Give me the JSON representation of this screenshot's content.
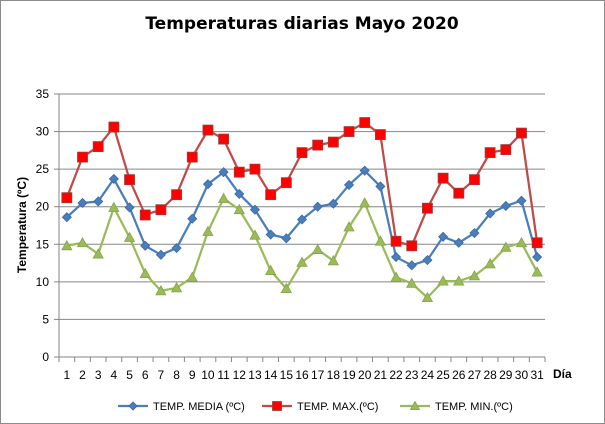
{
  "chart_data": {
    "type": "line",
    "title": "Temperaturas diarias Mayo 2020",
    "xlabel": "Día",
    "ylabel": "Temperatura (ºC)",
    "ylim": [
      0,
      35
    ],
    "yticks": [
      0,
      5,
      10,
      15,
      20,
      25,
      30,
      35
    ],
    "grid": "horizontal",
    "legend": "bottom",
    "categories": [
      "1",
      "2",
      "3",
      "4",
      "5",
      "6",
      "7",
      "8",
      "9",
      "10",
      "11",
      "12",
      "13",
      "14",
      "15",
      "16",
      "17",
      "18",
      "19",
      "20",
      "21",
      "22",
      "23",
      "24",
      "25",
      "26",
      "27",
      "28",
      "29",
      "30",
      "31"
    ],
    "series": [
      {
        "name": "TEMP. MEDIA (ºC)",
        "color": "#4a7ebb",
        "marker": "diamond",
        "values": [
          18.6,
          20.5,
          20.7,
          23.7,
          19.9,
          14.8,
          13.6,
          14.5,
          18.4,
          23.0,
          24.6,
          21.7,
          19.6,
          16.3,
          15.8,
          18.3,
          20.0,
          20.4,
          22.9,
          24.8,
          22.7,
          13.3,
          12.2,
          12.9,
          16.0,
          15.2,
          16.5,
          19.1,
          20.1,
          20.8,
          13.3
        ]
      },
      {
        "name": "TEMP. MAX.(ºC)",
        "color": "#be4b48",
        "marker": "square",
        "values": [
          21.2,
          26.6,
          28.0,
          30.6,
          23.6,
          18.9,
          19.6,
          21.6,
          26.6,
          30.2,
          29.0,
          24.6,
          25.0,
          21.6,
          23.2,
          27.2,
          28.2,
          28.6,
          30.0,
          31.2,
          29.6,
          15.4,
          14.8,
          19.8,
          23.8,
          21.8,
          23.6,
          27.2,
          27.6,
          29.8,
          15.2
        ]
      },
      {
        "name": "TEMP. MIN.(ºC)",
        "color": "#9bbb59",
        "marker": "triangle",
        "values": [
          14.8,
          15.2,
          13.7,
          19.9,
          15.9,
          11.1,
          8.8,
          9.2,
          10.6,
          16.7,
          21.1,
          19.6,
          16.2,
          11.5,
          9.1,
          12.6,
          14.3,
          12.8,
          17.3,
          20.5,
          15.4,
          10.6,
          9.8,
          7.9,
          10.1,
          10.1,
          10.8,
          12.4,
          14.6,
          15.2,
          11.3
        ]
      }
    ]
  }
}
